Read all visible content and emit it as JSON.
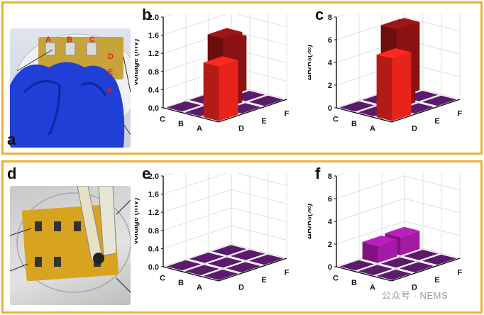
{
  "panels": {
    "a": "a",
    "b": "b",
    "c": "c",
    "d": "d",
    "e": "e",
    "f": "f"
  },
  "photo_top": {
    "pad_labels": [
      "A",
      "B",
      "C",
      "D",
      "E",
      "F"
    ]
  },
  "watermark": {
    "text": "公众号 · NEMS"
  },
  "colors": {
    "frame": "#eab13a",
    "bar_light": "#e6241c",
    "bar_dark": "#8b1212",
    "base_square": "#5b1a6b",
    "bar_purple": "#a31aa6"
  },
  "chart_data": [
    {
      "id": "b",
      "type": "bar",
      "subtype": "3d-bar",
      "ylabel": "Voltage (mV)",
      "zlim": [
        0,
        2.0
      ],
      "zticks": [
        "0.0",
        "0.4",
        "0.8",
        "1.2",
        "1.6",
        "2.0"
      ],
      "x_categories": [
        "A",
        "B",
        "C"
      ],
      "y_categories": [
        "D",
        "E",
        "F"
      ],
      "values": [
        [
          1.2,
          0.0,
          0.0
        ],
        [
          0.0,
          1.55,
          0.0
        ],
        [
          0.0,
          0.0,
          1.2
        ]
      ],
      "bar_colors": [
        [
          "light",
          "none",
          "none"
        ],
        [
          "none",
          "dark",
          "none"
        ],
        [
          "none",
          "none",
          "dark"
        ]
      ]
    },
    {
      "id": "c",
      "type": "bar",
      "subtype": "3d-bar",
      "ylabel": "ΔR/R₀(‰)",
      "zlim": [
        0,
        8
      ],
      "zticks": [
        "0",
        "2",
        "4",
        "6",
        "8"
      ],
      "x_categories": [
        "A",
        "B",
        "C"
      ],
      "y_categories": [
        "D",
        "E",
        "F"
      ],
      "values": [
        [
          5.5,
          0.0,
          0.0
        ],
        [
          0.0,
          7.0,
          0.0
        ],
        [
          0.0,
          0.0,
          6.0
        ]
      ],
      "bar_colors": [
        [
          "light",
          "none",
          "none"
        ],
        [
          "none",
          "dark",
          "none"
        ],
        [
          "none",
          "none",
          "dark"
        ]
      ]
    },
    {
      "id": "e",
      "type": "bar",
      "subtype": "3d-bar",
      "ylabel": "Voltage (mV)",
      "zlim": [
        0,
        2.0
      ],
      "zticks": [
        "0.0",
        "0.4",
        "0.8",
        "1.2",
        "1.6",
        "2.0"
      ],
      "x_categories": [
        "A",
        "B",
        "C"
      ],
      "y_categories": [
        "D",
        "E",
        "F"
      ],
      "values": [
        [
          0.0,
          0.0,
          0.0
        ],
        [
          0.0,
          0.0,
          0.0
        ],
        [
          0.0,
          0.0,
          0.0
        ]
      ],
      "bar_colors": [
        [
          "none",
          "none",
          "none"
        ],
        [
          "none",
          "none",
          "none"
        ],
        [
          "none",
          "none",
          "none"
        ]
      ]
    },
    {
      "id": "f",
      "type": "bar",
      "subtype": "3d-bar",
      "ylabel": "ΔR/R₀(‰)",
      "zlim": [
        0,
        8
      ],
      "zticks": [
        "0",
        "2",
        "4",
        "6",
        "8"
      ],
      "x_categories": [
        "A",
        "B",
        "C"
      ],
      "y_categories": [
        "D",
        "E",
        "F"
      ],
      "values": [
        [
          0.0,
          0.0,
          0.0
        ],
        [
          0.0,
          0.0,
          0.0
        ],
        [
          0.0,
          1.5,
          1.6
        ]
      ],
      "bar_colors": [
        [
          "none",
          "none",
          "none"
        ],
        [
          "none",
          "none",
          "none"
        ],
        [
          "none",
          "purple",
          "purple"
        ]
      ]
    }
  ]
}
